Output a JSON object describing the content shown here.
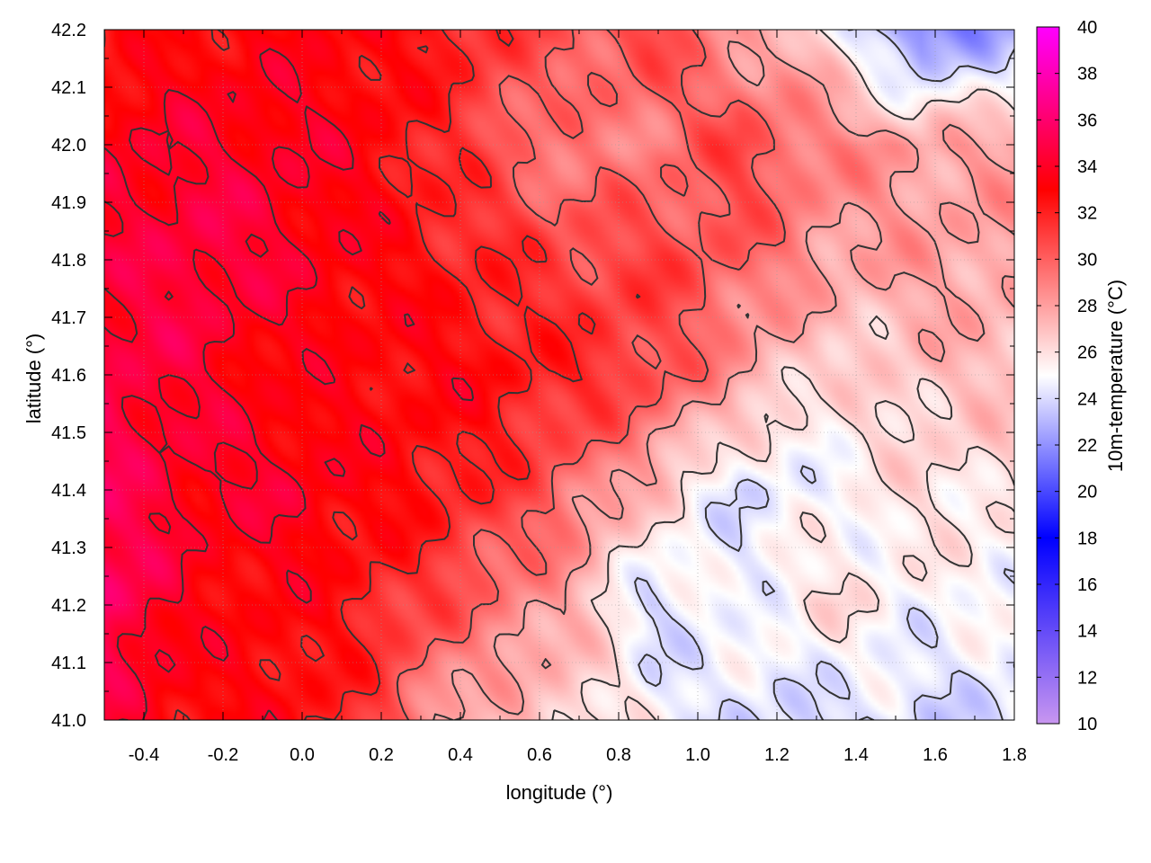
{
  "chart_data": {
    "type": "heatmap",
    "title": "",
    "xlabel": "longitude (°)",
    "ylabel": "latitude (°)",
    "colorbar_label": "10m-temperature (°C)",
    "xlim": [
      -0.5,
      1.8
    ],
    "ylim": [
      41.0,
      42.2
    ],
    "zlim": [
      10,
      40
    ],
    "x_ticks": [
      -0.4,
      -0.2,
      0.0,
      0.2,
      0.4,
      0.6,
      0.8,
      1.0,
      1.2,
      1.4,
      1.6,
      1.8
    ],
    "x_tick_labels": [
      "-0.4",
      "-0.2",
      "0.0",
      "0.2",
      "0.4",
      "0.6",
      "0.8",
      "1.0",
      "1.2",
      "1.4",
      "1.6",
      "1.8"
    ],
    "y_ticks": [
      41.0,
      41.1,
      41.2,
      41.3,
      41.4,
      41.5,
      41.6,
      41.7,
      41.8,
      41.9,
      42.0,
      42.1,
      42.2
    ],
    "y_tick_labels": [
      "41.0",
      "41.1",
      "41.2",
      "41.3",
      "41.4",
      "41.5",
      "41.6",
      "41.7",
      "41.8",
      "41.9",
      "42.0",
      "42.1",
      "42.2"
    ],
    "colorbar_ticks": [
      10,
      12,
      14,
      16,
      18,
      20,
      22,
      24,
      26,
      28,
      30,
      32,
      34,
      36,
      38,
      40
    ],
    "colorbar_tick_labels": [
      "10",
      "12",
      "14",
      "16",
      "18",
      "20",
      "22",
      "24",
      "26",
      "28",
      "30",
      "32",
      "34",
      "36",
      "38",
      "40"
    ],
    "grid": true,
    "colormap": [
      {
        "value": 10,
        "color": "#c896f0"
      },
      {
        "value": 18,
        "color": "#0000ff"
      },
      {
        "value": 25,
        "color": "#ffffff"
      },
      {
        "value": 33,
        "color": "#ff0000"
      },
      {
        "value": 40,
        "color": "#ff00ff"
      }
    ],
    "contour_color": "#333333",
    "field": {
      "x": [
        -0.5,
        -0.27,
        -0.04,
        0.19,
        0.42,
        0.65,
        0.88,
        1.11,
        1.34,
        1.57,
        1.8
      ],
      "y": [
        42.2,
        42.0,
        41.8,
        41.6,
        41.4,
        41.2,
        41.0
      ],
      "z": [
        [
          32,
          33,
          33,
          33,
          32,
          30,
          31,
          28,
          26,
          21,
          23
        ],
        [
          34,
          34,
          34,
          33,
          31,
          29,
          29,
          31,
          29,
          28,
          28
        ],
        [
          34,
          35,
          34,
          33,
          32,
          31,
          31,
          30,
          28,
          28,
          28
        ],
        [
          35,
          34,
          33,
          33,
          33,
          32,
          31,
          28,
          26,
          27,
          27
        ],
        [
          35,
          34,
          34,
          33,
          32,
          30,
          27,
          24,
          25,
          26,
          26
        ],
        [
          36,
          33,
          33,
          32,
          30,
          28,
          24,
          25,
          26,
          25,
          25
        ],
        [
          34,
          33,
          33,
          31,
          27,
          27,
          25,
          24,
          24,
          24,
          24
        ]
      ]
    }
  }
}
